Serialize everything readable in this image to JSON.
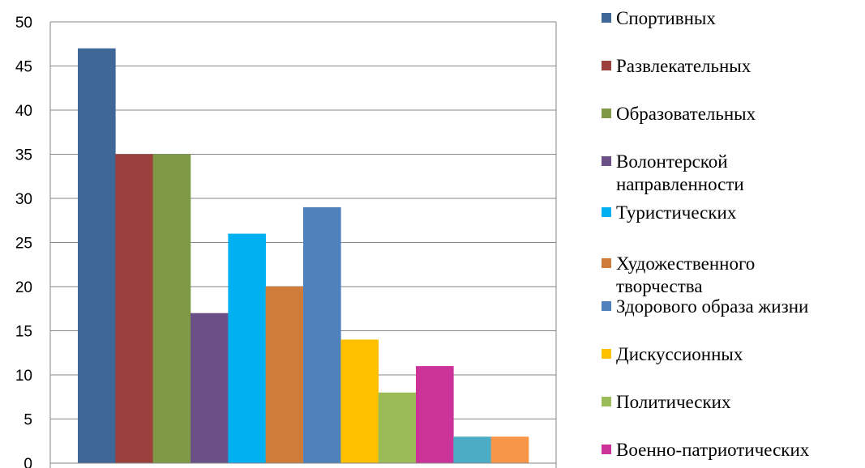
{
  "chart_data": {
    "type": "bar",
    "title": "",
    "xlabel": "",
    "ylabel": "",
    "ylim": [
      0,
      50
    ],
    "yticks": [
      0,
      5,
      10,
      15,
      20,
      25,
      30,
      35,
      40,
      45,
      50
    ],
    "grid": true,
    "legend_position": "right",
    "series": [
      {
        "name": "Спортивных",
        "value": 47,
        "color": "#3F6797"
      },
      {
        "name": "Развлекательных",
        "value": 35,
        "color": "#9B403D"
      },
      {
        "name": "Образовательных",
        "value": 35,
        "color": "#7E9A47"
      },
      {
        "name": "Волонтерской направленности",
        "value": 17,
        "color": "#6A5086"
      },
      {
        "name": "Туристических",
        "value": 26,
        "color": "#00B0F0"
      },
      {
        "name": "Художественного творчества",
        "value": 20,
        "color": "#CF7C3A"
      },
      {
        "name": "Здорового образа жизни",
        "value": 29,
        "color": "#4F81BD"
      },
      {
        "name": "Дискуссионных",
        "value": 14,
        "color": "#FFC000"
      },
      {
        "name": "Политических",
        "value": 8,
        "color": "#9BBB59"
      },
      {
        "name": "Военно-патриотических",
        "value": 11,
        "color": "#CC3399"
      },
      {
        "name": "",
        "value": 3,
        "color": "#4BACC6"
      },
      {
        "name": "",
        "value": 3,
        "color": "#F79646"
      }
    ]
  }
}
